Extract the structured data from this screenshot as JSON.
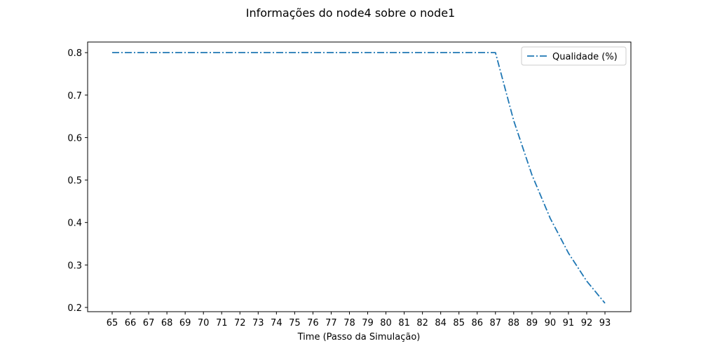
{
  "chart_data": {
    "type": "line",
    "title": "Informações do node4 sobre o node1",
    "xlabel": "Time (Passo da Simulação)",
    "ylabel": "",
    "categories": [
      "65",
      "66",
      "67",
      "68",
      "69",
      "70",
      "71",
      "72",
      "73",
      "74",
      "75",
      "76",
      "77",
      "78",
      "79",
      "80",
      "81",
      "82",
      "84",
      "85",
      "86",
      "87",
      "88",
      "89",
      "90",
      "91",
      "92",
      "93"
    ],
    "series": [
      {
        "name": "Qualidade (%)",
        "color": "#1f77b4",
        "line_style": "dash-dot",
        "values": [
          0.8,
          0.8,
          0.8,
          0.8,
          0.8,
          0.8,
          0.8,
          0.8,
          0.8,
          0.8,
          0.8,
          0.8,
          0.8,
          0.8,
          0.8,
          0.8,
          0.8,
          0.8,
          0.8,
          0.8,
          0.8,
          0.8,
          0.64,
          0.512,
          0.41,
          0.328,
          0.262,
          0.21
        ]
      }
    ],
    "ylim": [
      0.19,
      0.825
    ],
    "yticks": [
      "0.2",
      "0.3",
      "0.4",
      "0.5",
      "0.6",
      "0.7",
      "0.8"
    ],
    "grid": false,
    "legend_position": "top-right"
  }
}
